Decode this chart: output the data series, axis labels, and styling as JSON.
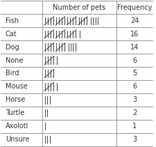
{
  "title_col1": "Number of pets",
  "title_col2": "Frequency",
  "rows": [
    {
      "category": "Fish",
      "tally_groups": [
        5,
        5,
        5,
        5
      ],
      "tally_extra": 4,
      "frequency": "24"
    },
    {
      "category": "Cat",
      "tally_groups": [
        5,
        5,
        5
      ],
      "tally_extra": 1,
      "frequency": "16"
    },
    {
      "category": "Dog",
      "tally_groups": [
        5,
        5
      ],
      "tally_extra": 4,
      "frequency": "14"
    },
    {
      "category": "None",
      "tally_groups": [
        5
      ],
      "tally_extra": 1,
      "frequency": "6"
    },
    {
      "category": "Bird",
      "tally_groups": [
        5
      ],
      "tally_extra": 0,
      "frequency": "5"
    },
    {
      "category": "Mouse",
      "tally_groups": [
        5
      ],
      "tally_extra": 1,
      "frequency": "6"
    },
    {
      "category": "Horse",
      "tally_groups": [],
      "tally_extra": 3,
      "frequency": "3"
    },
    {
      "category": "Turtle",
      "tally_groups": [],
      "tally_extra": 2,
      "frequency": "2"
    },
    {
      "category": "Axolotl",
      "tally_groups": [],
      "tally_extra": 1,
      "frequency": "1"
    },
    {
      "category": "Unsure",
      "tally_groups": [],
      "tally_extra": 3,
      "frequency": "3"
    }
  ],
  "bg_color": "#ffffff",
  "text_color": "#333333",
  "tally_color": "#444444",
  "line_color": "#888888",
  "font_size": 7.0,
  "header_font_size": 7.0,
  "fig_width": 2.26,
  "fig_height": 2.11,
  "dpi": 100
}
